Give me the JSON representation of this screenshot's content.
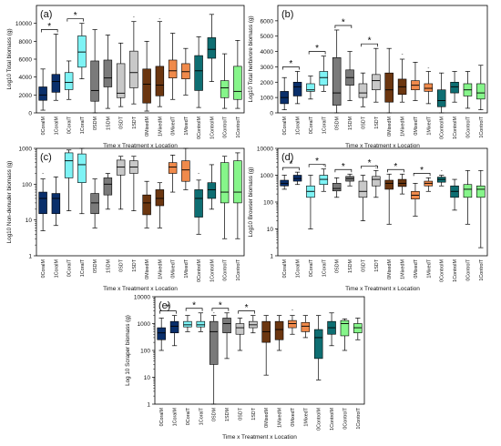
{
  "common": {
    "xlabel": "Time x Treatment x Location",
    "categories": [
      "0CoralM",
      "1CoralM",
      "0CoralT",
      "1CoralT",
      "0SDM",
      "1SDM",
      "0SDT",
      "1SDT",
      "0MixedM",
      "1MixedM",
      "0MixedT",
      "1MixedT",
      "0ControlM",
      "1ControlM",
      "0ControlT",
      "1ControlT"
    ],
    "colors": [
      "#0a2f6b",
      "#0a2f6b",
      "#7ef3f5",
      "#7ef3f5",
      "#7a7a7a",
      "#7a7a7a",
      "#c8c8c8",
      "#c8c8c8",
      "#6b3610",
      "#6b3610",
      "#f08a4b",
      "#f08a4b",
      "#0e6e72",
      "#0e6e72",
      "#86f58a",
      "#86f58a"
    ]
  },
  "chart_data": [
    {
      "type": "box",
      "panel": "(a)",
      "ylabel": "Log10 Total biomass (g)",
      "ylim": [
        0,
        12000
      ],
      "yticks": [
        0,
        2000,
        4000,
        6000,
        8000,
        10000
      ],
      "series": [
        {
          "name": "0CoralM",
          "values": [
            300,
            1400,
            2000,
            2900,
            4900
          ]
        },
        {
          "name": "1CoralM",
          "values": [
            1400,
            2300,
            3500,
            4300,
            8800
          ]
        },
        {
          "name": "0CoralT",
          "values": [
            1500,
            2600,
            3400,
            4500,
            5800
          ]
        },
        {
          "name": "1CoralT",
          "values": [
            3800,
            5100,
            6800,
            8600,
            10000
          ]
        },
        {
          "name": "0SDM",
          "values": [
            0,
            1300,
            2500,
            5800,
            9300
          ]
        },
        {
          "name": "1SDM",
          "values": [
            500,
            2900,
            3900,
            5900,
            8700
          ]
        },
        {
          "name": "0SDT",
          "values": [
            700,
            1700,
            2200,
            5500,
            7800
          ]
        },
        {
          "name": "1SDT",
          "values": [
            1000,
            2800,
            4500,
            6900,
            10200
          ]
        },
        {
          "name": "0MixedM",
          "values": [
            200,
            1100,
            3200,
            4900,
            8000
          ]
        },
        {
          "name": "1MixedM",
          "values": [
            700,
            1900,
            3100,
            5200,
            10200
          ]
        },
        {
          "name": "0MixedT",
          "values": [
            1500,
            3900,
            4700,
            5900,
            8900
          ]
        },
        {
          "name": "1MixedT",
          "values": [
            2000,
            3800,
            4600,
            5500,
            7200
          ]
        },
        {
          "name": "0ControlM",
          "values": [
            600,
            2500,
            4700,
            6400,
            8500
          ]
        },
        {
          "name": "1ControlM",
          "values": [
            3500,
            6100,
            7100,
            8400,
            11000
          ]
        },
        {
          "name": "0ControlT",
          "values": [
            500,
            1700,
            2800,
            3600,
            6600
          ]
        },
        {
          "name": "1ControlT",
          "values": [
            500,
            1500,
            2400,
            5200,
            8100
          ]
        }
      ],
      "outliers": [
        [
          7,
          10700
        ],
        [
          9,
          10500
        ]
      ],
      "significance": [
        [
          0,
          1
        ],
        [
          2,
          3
        ]
      ]
    },
    {
      "type": "box",
      "panel": "(b)",
      "ylabel": "Log10 Total herbivore biomass (g)",
      "ylim": [
        0,
        7000
      ],
      "yticks": [
        0,
        1000,
        2000,
        3000,
        4000,
        5000,
        6000
      ],
      "series": [
        {
          "name": "0CoralM",
          "values": [
            200,
            600,
            1000,
            1400,
            2300
          ]
        },
        {
          "name": "1CoralM",
          "values": [
            600,
            1100,
            1700,
            2000,
            2700
          ]
        },
        {
          "name": "0CoralT",
          "values": [
            900,
            1400,
            1500,
            1900,
            2400
          ]
        },
        {
          "name": "1CoralT",
          "values": [
            1400,
            1800,
            2300,
            2700,
            3700
          ]
        },
        {
          "name": "0SDM",
          "values": [
            0,
            500,
            1300,
            3600,
            5400
          ]
        },
        {
          "name": "1SDM",
          "values": [
            800,
            1800,
            2300,
            2800,
            4000
          ]
        },
        {
          "name": "0SDT",
          "values": [
            400,
            1000,
            1300,
            1900,
            2600
          ]
        },
        {
          "name": "1SDT",
          "values": [
            700,
            1500,
            2100,
            2500,
            4200
          ]
        },
        {
          "name": "0MixedM",
          "values": [
            0,
            700,
            1500,
            2600,
            4200
          ]
        },
        {
          "name": "1MixedM",
          "values": [
            700,
            1200,
            1700,
            2200,
            3500
          ]
        },
        {
          "name": "0MixedT",
          "values": [
            800,
            1500,
            1800,
            2100,
            3300
          ]
        },
        {
          "name": "1MixedT",
          "values": [
            600,
            1400,
            1600,
            1900,
            2700
          ]
        },
        {
          "name": "0ControlM",
          "values": [
            0,
            400,
            800,
            1500,
            2600
          ]
        },
        {
          "name": "1ControlM",
          "values": [
            700,
            1300,
            1700,
            2000,
            2700
          ]
        },
        {
          "name": "0ControlT",
          "values": [
            300,
            1100,
            1500,
            1900,
            2700
          ]
        },
        {
          "name": "1ControlT",
          "values": [
            200,
            900,
            1300,
            1900,
            3100
          ]
        }
      ],
      "outliers": [
        [
          9,
          3800
        ],
        [
          11,
          2900
        ]
      ],
      "significance": [
        [
          0,
          1
        ],
        [
          2,
          3
        ],
        [
          4,
          5
        ],
        [
          6,
          7
        ]
      ]
    },
    {
      "type": "box",
      "panel": "(c)",
      "log": true,
      "ylabel": "Log10 Non-denuder biomass (g)",
      "ylim": [
        1,
        1000
      ],
      "yticks": [
        1,
        10,
        100,
        1000
      ],
      "series": [
        {
          "name": "0CoralM",
          "values": [
            5,
            15,
            40,
            60,
            140
          ]
        },
        {
          "name": "1CoralM",
          "values": [
            7,
            15,
            40,
            55,
            160
          ]
        },
        {
          "name": "0CoralT",
          "values": [
            18,
            150,
            450,
            750,
            900
          ]
        },
        {
          "name": "1CoralT",
          "values": [
            15,
            110,
            350,
            700,
            1000
          ]
        },
        {
          "name": "0SDM",
          "values": [
            6,
            15,
            30,
            55,
            140
          ]
        },
        {
          "name": "1SDM",
          "values": [
            20,
            50,
            100,
            150,
            200
          ]
        },
        {
          "name": "0SDT",
          "values": [
            20,
            180,
            300,
            470,
            600
          ]
        },
        {
          "name": "1SDT",
          "values": [
            18,
            200,
            300,
            450,
            600
          ]
        },
        {
          "name": "0MixedM",
          "values": [
            6,
            14,
            30,
            50,
            120
          ]
        },
        {
          "name": "1MixedM",
          "values": [
            6,
            25,
            40,
            70,
            110
          ]
        },
        {
          "name": "0MixedT",
          "values": [
            60,
            200,
            300,
            400,
            650
          ]
        },
        {
          "name": "1MixedT",
          "values": [
            70,
            120,
            250,
            450,
            1000
          ]
        },
        {
          "name": "0ControlM",
          "values": [
            4,
            12,
            40,
            70,
            130
          ]
        },
        {
          "name": "1ControlM",
          "values": [
            20,
            40,
            70,
            110,
            350
          ]
        },
        {
          "name": "0ControlT",
          "values": [
            3,
            30,
            60,
            400,
            600
          ]
        },
        {
          "name": "1ControlT",
          "values": [
            3,
            30,
            60,
            450,
            750
          ]
        }
      ],
      "outliers": [
        [
          0,
          200
        ],
        [
          12,
          200
        ]
      ],
      "significance": []
    },
    {
      "type": "box",
      "panel": "(d)",
      "log": true,
      "ylabel": "Log10 Browser biomass (g)",
      "ylim": [
        1,
        10000
      ],
      "yticks": [
        1,
        10,
        100,
        1000,
        10000
      ],
      "series": [
        {
          "name": "0CoralM",
          "values": [
            300,
            400,
            500,
            650,
            1000
          ]
        },
        {
          "name": "1CoralM",
          "values": [
            450,
            600,
            750,
            1000,
            1300
          ]
        },
        {
          "name": "0CoralT",
          "values": [
            10,
            150,
            250,
            400,
            1000
          ]
        },
        {
          "name": "1CoralT",
          "values": [
            250,
            450,
            700,
            1000,
            1700
          ]
        },
        {
          "name": "0SDM",
          "values": [
            150,
            260,
            320,
            500,
            800
          ]
        },
        {
          "name": "1SDM",
          "values": [
            400,
            600,
            750,
            900,
            1100
          ]
        },
        {
          "name": "0SDT",
          "values": [
            20,
            150,
            250,
            600,
            1000
          ]
        },
        {
          "name": "1SDT",
          "values": [
            150,
            400,
            700,
            900,
            1500
          ]
        },
        {
          "name": "0MixedM",
          "values": [
            15,
            300,
            500,
            650,
            1100
          ]
        },
        {
          "name": "1MixedM",
          "values": [
            200,
            380,
            500,
            700,
            1100
          ]
        },
        {
          "name": "0MixedT",
          "values": [
            30,
            130,
            180,
            250,
            500
          ]
        },
        {
          "name": "1MixedT",
          "values": [
            250,
            400,
            500,
            600,
            800
          ]
        },
        {
          "name": "0ControlM",
          "values": [
            400,
            550,
            700,
            850,
            1000
          ]
        },
        {
          "name": "1ControlM",
          "values": [
            50,
            150,
            250,
            400,
            700
          ]
        },
        {
          "name": "0ControlT",
          "values": [
            15,
            150,
            300,
            450,
            1500
          ]
        },
        {
          "name": "1ControlT",
          "values": [
            2,
            150,
            300,
            400,
            1500
          ]
        }
      ],
      "outliers": [
        [
          3,
          2400
        ],
        [
          7,
          1900
        ],
        [
          7,
          2300
        ],
        [
          12,
          1500
        ]
      ],
      "significance": [
        [
          0,
          1
        ],
        [
          2,
          3
        ],
        [
          4,
          5
        ],
        [
          6,
          7
        ],
        [
          8,
          9
        ],
        [
          10,
          11
        ]
      ]
    },
    {
      "type": "box",
      "panel": "(e)",
      "log": true,
      "ylabel": "Log 10 Scraper biomass (g)",
      "ylim": [
        1,
        10000
      ],
      "yticks": [
        1,
        10,
        100,
        1000,
        10000
      ],
      "series": [
        {
          "name": "0CoralM",
          "values": [
            100,
            250,
            450,
            700,
            1600
          ]
        },
        {
          "name": "1CoralM",
          "values": [
            150,
            450,
            800,
            1200,
            2000
          ]
        },
        {
          "name": "0CoralT",
          "values": [
            500,
            750,
            900,
            1200,
            2000
          ]
        },
        {
          "name": "1CoralT",
          "values": [
            500,
            750,
            900,
            1200,
            2500
          ]
        },
        {
          "name": "0SDM",
          "values": [
            1,
            30,
            500,
            1200,
            2000
          ]
        },
        {
          "name": "1SDM",
          "values": [
            50,
            450,
            1000,
            1600,
            2500
          ]
        },
        {
          "name": "0SDT",
          "values": [
            100,
            400,
            700,
            1000,
            1600
          ]
        },
        {
          "name": "1SDT",
          "values": [
            450,
            700,
            900,
            1200,
            2000
          ]
        },
        {
          "name": "0MixedM",
          "values": [
            12,
            200,
            500,
            1200,
            2000
          ]
        },
        {
          "name": "1MixedM",
          "values": [
            100,
            250,
            600,
            1200,
            2000
          ]
        },
        {
          "name": "0MixedT",
          "values": [
            400,
            700,
            1000,
            1300,
            2000
          ]
        },
        {
          "name": "1MixedT",
          "values": [
            300,
            500,
            800,
            1100,
            2000
          ]
        },
        {
          "name": "0ControlM",
          "values": [
            8,
            50,
            300,
            600,
            2000
          ]
        },
        {
          "name": "1ControlM",
          "values": [
            150,
            400,
            700,
            1200,
            2500
          ]
        },
        {
          "name": "0ControlT",
          "values": [
            100,
            350,
            1000,
            1300,
            1500
          ]
        },
        {
          "name": "1ControlT",
          "values": [
            250,
            450,
            700,
            1000,
            1600
          ]
        }
      ],
      "outliers": [
        [
          4,
          2500
        ],
        [
          10,
          3200
        ]
      ],
      "significance": [
        [
          0,
          1
        ],
        [
          2,
          3
        ],
        [
          4,
          5
        ],
        [
          6,
          7
        ]
      ]
    }
  ]
}
